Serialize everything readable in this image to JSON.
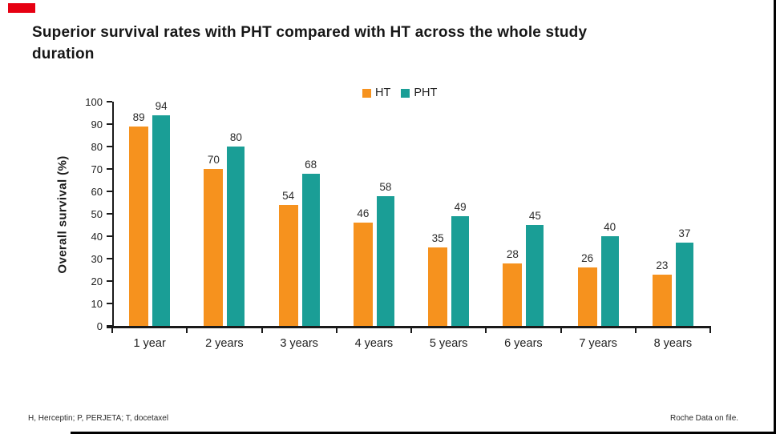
{
  "title": "Superior survival rates with PHT compared with HT across the whole study duration",
  "footer": {
    "left": "H, Herceptin; P, PERJETA; T, docetaxel",
    "right": "Roche Data on file."
  },
  "decorations": {
    "red_mark_color": "#e60012",
    "border_color": "#000000"
  },
  "chart_data": {
    "type": "bar",
    "title": "Superior survival rates with PHT compared with HT across the whole study duration",
    "categories": [
      "1 year",
      "2 years",
      "3 years",
      "4 years",
      "5 years",
      "6 years",
      "7 years",
      "8 years"
    ],
    "series": [
      {
        "name": "HT",
        "color": "#F6921E",
        "values": [
          89,
          70,
          54,
          46,
          35,
          28,
          26,
          23
        ]
      },
      {
        "name": "PHT",
        "color": "#1A9E96",
        "values": [
          94,
          80,
          68,
          58,
          49,
          45,
          40,
          37
        ]
      }
    ],
    "xlabel": "",
    "ylabel": "Overall survival (%)",
    "ylim": [
      0,
      100
    ],
    "ytick_step": 10,
    "grid": false,
    "legend_position": "top-center",
    "value_labels": true
  }
}
